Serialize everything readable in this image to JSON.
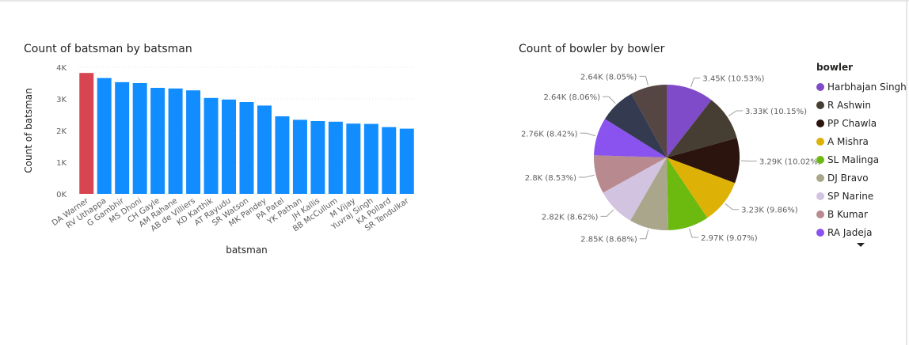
{
  "colors": {
    "bar_default": "#118DFF",
    "bar_highlight": "#D64550",
    "grid": "#e6e6e6"
  },
  "chart_data": [
    {
      "type": "bar",
      "title": "Count of batsman by batsman",
      "xlabel": "batsman",
      "ylabel": "Count of batsman",
      "ylim": [
        0,
        4000
      ],
      "yticks": [
        0,
        1000,
        2000,
        3000,
        4000
      ],
      "ytick_labels": [
        "0K",
        "1K",
        "2K",
        "3K",
        "4K"
      ],
      "grid": true,
      "categories": [
        "DA Warner",
        "RV Uthappa",
        "G Gambhir",
        "MS Dhoni",
        "CH Gayle",
        "AM Rahane",
        "AB de Villiers",
        "KD Karthik",
        "AT Rayudu",
        "SR Watson",
        "MK Pandey",
        "PA Patel",
        "YK Pathan",
        "JH Kallis",
        "BB McCullum",
        "M Vijay",
        "Yuvraj Singh",
        "KA Pollard",
        "SR Tendulkar"
      ],
      "values": [
        3820,
        3660,
        3530,
        3500,
        3350,
        3330,
        3270,
        3030,
        2980,
        2900,
        2790,
        2450,
        2340,
        2300,
        2280,
        2220,
        2210,
        2110,
        2060
      ],
      "highlight_index": 0
    },
    {
      "type": "pie",
      "title": "Count of bowler by bowler",
      "legend_title": "bowler",
      "legend_position": "right",
      "slices": [
        {
          "name": "Harbhajan Singh",
          "value": 3450,
          "label": "3.45K (10.53%)",
          "color": "#7F4BC8"
        },
        {
          "name": "R Ashwin",
          "value": 3330,
          "label": "3.33K (10.15%)",
          "color": "#463E33"
        },
        {
          "name": "PP Chawla",
          "value": 3290,
          "label": "3.29K (10.02%)",
          "color": "#2B130E"
        },
        {
          "name": "A Mishra",
          "value": 3230,
          "label": "3.23K (9.86%)",
          "color": "#DEB106"
        },
        {
          "name": "SL Malinga",
          "value": 2970,
          "label": "2.97K (9.07%)",
          "color": "#6CB910"
        },
        {
          "name": "DJ Bravo",
          "value": 2850,
          "label": "2.85K (8.68%)",
          "color": "#A9A68C"
        },
        {
          "name": "SP Narine",
          "value": 2820,
          "label": "2.82K (8.62%)",
          "color": "#D2C4E0"
        },
        {
          "name": "B Kumar",
          "value": 2800,
          "label": "2.8K (8.53%)",
          "color": "#B88A90"
        },
        {
          "name": "RA Jadeja",
          "value": 2760,
          "label": "2.76K (8.42%)",
          "color": "#8A52EE"
        },
        {
          "name": "",
          "value": 2640,
          "label": "2.64K (8.06%)",
          "color": "#343A4F"
        },
        {
          "name": "",
          "value": 2640,
          "label": "2.64K (8.05%)",
          "color": "#554643"
        }
      ]
    }
  ]
}
